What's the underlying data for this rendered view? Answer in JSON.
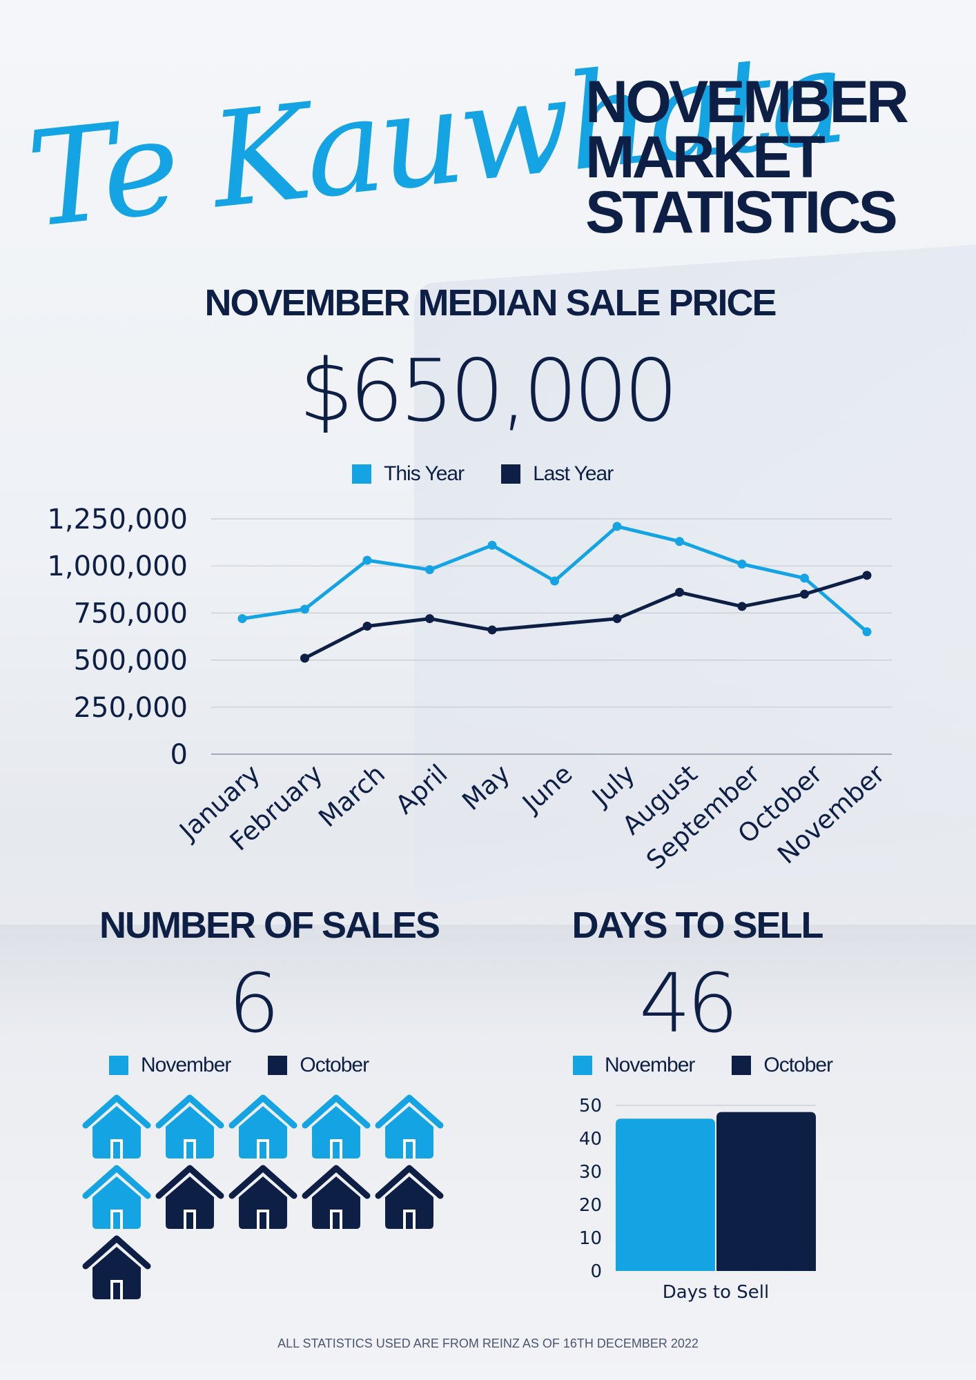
{
  "header": {
    "script_title": "Te Kauwhata",
    "title_lines": [
      "NOVEMBER",
      "MARKET",
      "STATISTICS"
    ]
  },
  "median": {
    "heading": "NOVEMBER MEDIAN SALE PRICE",
    "value": "$650,000"
  },
  "colors": {
    "this_year": "#14a3e3",
    "last_year": "#0e1f45",
    "november": "#14a3e3",
    "october": "#0e1f45"
  },
  "sales": {
    "heading": "NUMBER OF SALES",
    "value": "6",
    "legend": [
      "November",
      "October"
    ],
    "house_icon": "house-icon",
    "november_count": 6,
    "october_count": 5
  },
  "days": {
    "heading": "DAYS TO SELL",
    "value": "46",
    "legend": [
      "November",
      "October"
    ]
  },
  "chart_data": [
    {
      "type": "line",
      "title": "",
      "legend": [
        "This Year",
        "Last Year"
      ],
      "categories": [
        "January",
        "February",
        "March",
        "April",
        "May",
        "June",
        "July",
        "August",
        "September",
        "October",
        "November"
      ],
      "series": [
        {
          "name": "This Year",
          "values": [
            720000,
            770000,
            1030000,
            980000,
            1110000,
            920000,
            1210000,
            1130000,
            1010000,
            935000,
            650000
          ]
        },
        {
          "name": "Last Year",
          "values": [
            null,
            510000,
            680000,
            720000,
            660000,
            null,
            720000,
            860000,
            785000,
            850000,
            950000
          ]
        }
      ],
      "yticks": [
        "1,250,000",
        "1,000,000",
        "750,000",
        "500,000",
        "250,000",
        "0"
      ],
      "ylim": [
        0,
        1250000
      ],
      "grid": true,
      "legend_position": "top-center"
    },
    {
      "type": "bar",
      "categories": [
        "Days to Sell"
      ],
      "series": [
        {
          "name": "November",
          "values": [
            46
          ]
        },
        {
          "name": "October",
          "values": [
            48
          ]
        }
      ],
      "yticks": [
        "50",
        "40",
        "30",
        "20",
        "10",
        "0"
      ],
      "ylim": [
        0,
        50
      ],
      "xlabel": "Days to Sell",
      "grid": true,
      "legend_position": "top-center"
    }
  ],
  "footer": "ALL STATISTICS USED  ARE FROM REINZ AS OF 16TH DECEMBER 2022"
}
